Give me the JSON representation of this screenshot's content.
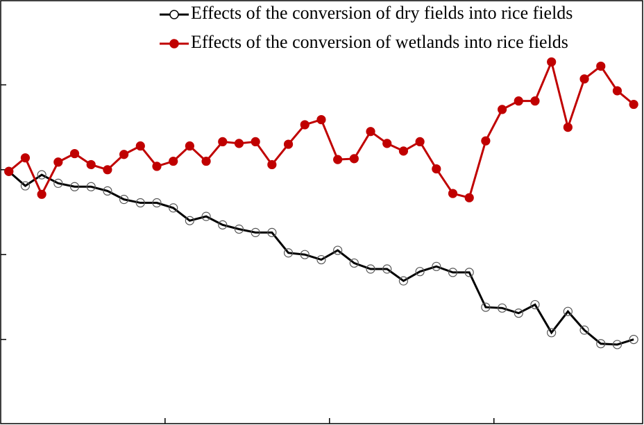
{
  "chart_data": {
    "type": "line",
    "x": [
      0,
      1,
      2,
      3,
      4,
      5,
      6,
      7,
      8,
      9,
      10,
      11,
      12,
      13,
      14,
      15,
      16,
      17,
      18,
      19,
      20,
      21,
      22,
      23,
      24,
      25,
      26,
      27,
      28,
      29,
      30,
      31,
      32,
      33,
      34,
      35,
      36,
      37,
      38
    ],
    "series": [
      {
        "name": "Effects of the conversion of dry fields into rice fields",
        "color": "#000000",
        "marker": "open",
        "values": [
          2.98,
          2.81,
          2.94,
          2.84,
          2.8,
          2.8,
          2.75,
          2.65,
          2.61,
          2.61,
          2.55,
          2.4,
          2.45,
          2.35,
          2.3,
          2.26,
          2.26,
          2.02,
          2.0,
          1.94,
          2.05,
          1.9,
          1.83,
          1.83,
          1.69,
          1.8,
          1.86,
          1.79,
          1.79,
          1.38,
          1.37,
          1.31,
          1.41,
          1.08,
          1.33,
          1.11,
          0.95,
          0.94,
          1.0
        ]
      },
      {
        "name": "Effects of the conversion of wetlands into rice fields",
        "color": "#c00000",
        "marker": "filled",
        "values": [
          2.98,
          3.14,
          2.71,
          3.09,
          3.19,
          3.06,
          3.0,
          3.18,
          3.28,
          3.04,
          3.1,
          3.28,
          3.1,
          3.33,
          3.31,
          3.33,
          3.06,
          3.3,
          3.53,
          3.59,
          3.12,
          3.13,
          3.45,
          3.31,
          3.22,
          3.33,
          3.01,
          2.72,
          2.67,
          3.34,
          3.71,
          3.81,
          3.81,
          4.27,
          3.5,
          4.07,
          4.22,
          3.93,
          3.77
        ]
      }
    ],
    "xlim": [
      -0.2,
      38.5
    ],
    "xticks": [
      9.5,
      19.5,
      29.5
    ],
    "ylim": [
      0,
      5
    ],
    "yticks": [
      1,
      2,
      3,
      4
    ],
    "legend": "upper right"
  }
}
